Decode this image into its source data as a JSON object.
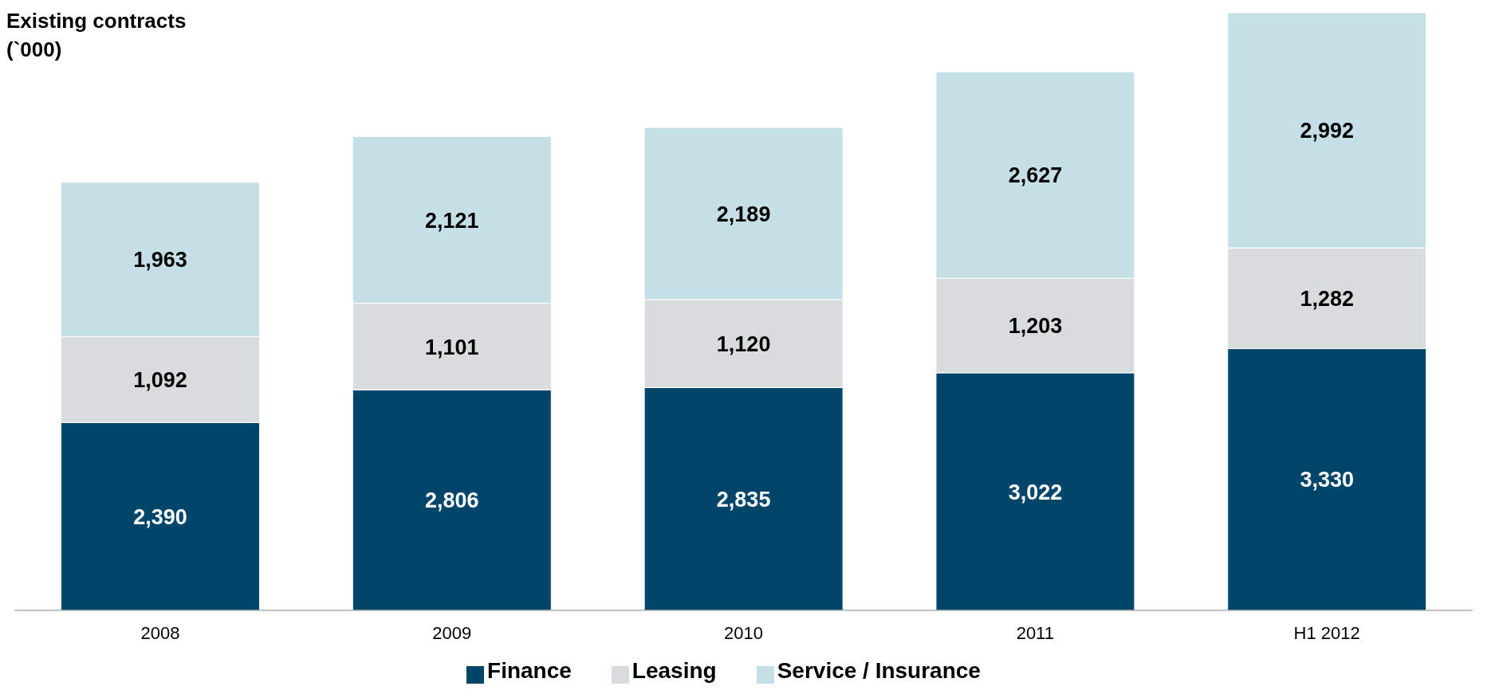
{
  "chart_data": {
    "type": "bar",
    "title": "Existing contracts",
    "subtitle": "(`000)",
    "stacked": true,
    "legend": "bottom",
    "categories": [
      "2008",
      "2009",
      "2010",
      "2011",
      "H1 2012"
    ],
    "series": [
      {
        "name": "Finance",
        "color": "#00466a",
        "values": [
          2390,
          2806,
          2835,
          3022,
          3330
        ],
        "value_labels": [
          "2,390",
          "2,806",
          "2,835",
          "3,022",
          "3,330"
        ]
      },
      {
        "name": "Leasing",
        "color": "#d9dcdd",
        "values": [
          1092,
          1101,
          1120,
          1203,
          1282
        ],
        "value_labels": [
          "1,092",
          "1,101",
          "1,120",
          "1,203",
          "1,282"
        ]
      },
      {
        "name": "Service / Insurance",
        "color": "#c5dfe6",
        "values": [
          1963,
          2121,
          2189,
          2627,
          2992
        ],
        "value_labels": [
          "1,963",
          "2,121",
          "2,189",
          "2,627",
          "2,992"
        ]
      }
    ]
  }
}
